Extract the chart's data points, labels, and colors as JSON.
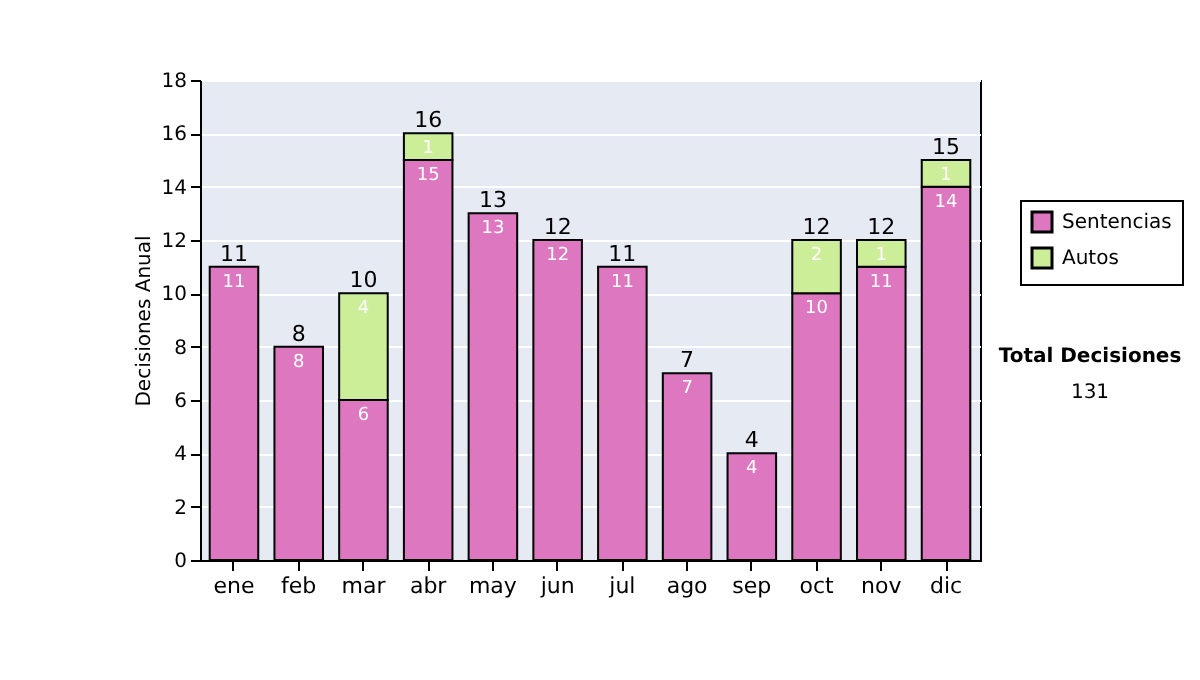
{
  "chart_data": {
    "type": "bar",
    "stacked": true,
    "ylabel": "Decisiones Anual",
    "categories": [
      "ene",
      "feb",
      "mar",
      "abr",
      "may",
      "jun",
      "jul",
      "ago",
      "sep",
      "oct",
      "nov",
      "dic"
    ],
    "series": [
      {
        "name": "Sentencias",
        "color": "#dd77c0",
        "values": [
          11,
          8,
          6,
          15,
          13,
          12,
          11,
          7,
          4,
          10,
          11,
          14
        ]
      },
      {
        "name": "Autos",
        "color": "#ccee99",
        "values": [
          null,
          null,
          4,
          1,
          null,
          null,
          null,
          null,
          null,
          2,
          1,
          1
        ]
      }
    ],
    "totals": [
      "11",
      "8",
      "10",
      "16",
      "13",
      "12",
      "11",
      "7",
      "4",
      "12",
      "12",
      "15"
    ],
    "data_labels": true,
    "ylim": [
      0,
      18
    ],
    "yticks": [
      0,
      2,
      4,
      6,
      8,
      10,
      12,
      14,
      16,
      18
    ],
    "grid": "y",
    "legend": "right",
    "annotations": [
      "Total Decisiones",
      "131"
    ]
  }
}
